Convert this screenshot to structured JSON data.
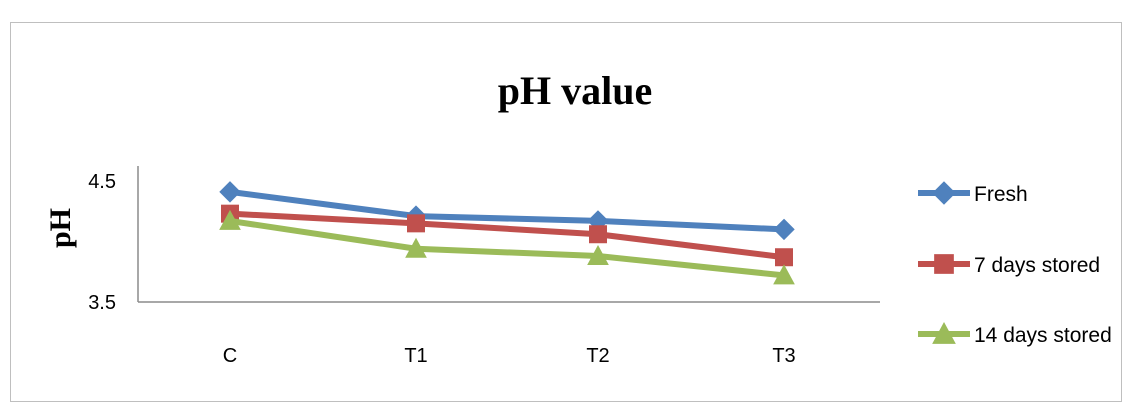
{
  "chart_data": {
    "type": "line",
    "title": "pH value",
    "ylabel": "pH",
    "xlabel": "",
    "categories": [
      "C",
      "T1",
      "T2",
      "T3"
    ],
    "ylim": [
      3.5,
      4.5
    ],
    "yticks": [
      "4.5",
      "3.5"
    ],
    "grid": false,
    "legend_position": "right",
    "series": [
      {
        "name": "Fresh",
        "values": [
          4.41,
          4.21,
          4.17,
          4.1
        ],
        "color": "#4f81bd",
        "marker": "diamond"
      },
      {
        "name": "7 days stored",
        "values": [
          4.23,
          4.15,
          4.06,
          3.87
        ],
        "color": "#c0504d",
        "marker": "square"
      },
      {
        "name": "14 days stored",
        "values": [
          4.17,
          3.94,
          3.88,
          3.72
        ],
        "color": "#9bbb59",
        "marker": "triangle"
      }
    ]
  }
}
